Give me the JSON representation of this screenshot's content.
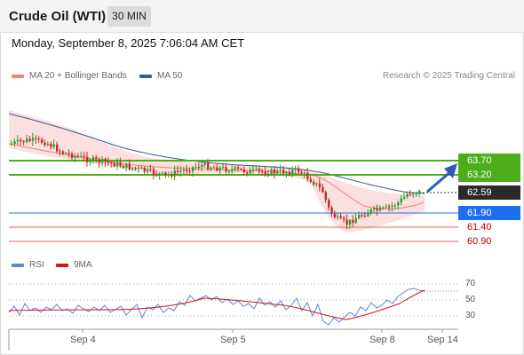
{
  "header": {
    "title": "Crude Oil (WTI)",
    "timeframe": "30 MIN"
  },
  "datetime": "Monday, September 8, 2025 7:06:04 AM CET",
  "legend": {
    "ma20": "MA 20 + Bollinger Bands",
    "ma50": "MA 50",
    "ma20_color": "#f08080",
    "ma50_color": "#3c5a9a"
  },
  "credit": "Research © 2025 Trading Central",
  "levels": {
    "r2": "63.70",
    "r1": "63.20",
    "last": "62.59",
    "pivot": "61.90",
    "s1": "61.40",
    "s2": "60.90"
  },
  "colors": {
    "resistance": "#4caf1a",
    "pivot": "#1e6ff0",
    "support": "#e06060",
    "last": "#2a2a2a",
    "candle_up": "#2e9e2e",
    "candle_down": "#c0302a",
    "arrow": "#2a5cb8"
  },
  "rsi_legend": {
    "rsi": "RSI",
    "ma": "9MA",
    "rsi_color": "#5b87d8",
    "ma_color": "#dd1111"
  },
  "rsi_axis": [
    "70",
    "50",
    "30"
  ],
  "x_axis": [
    "Sep 4",
    "Sep 5",
    "Sep 8",
    "Sep 14"
  ]
}
